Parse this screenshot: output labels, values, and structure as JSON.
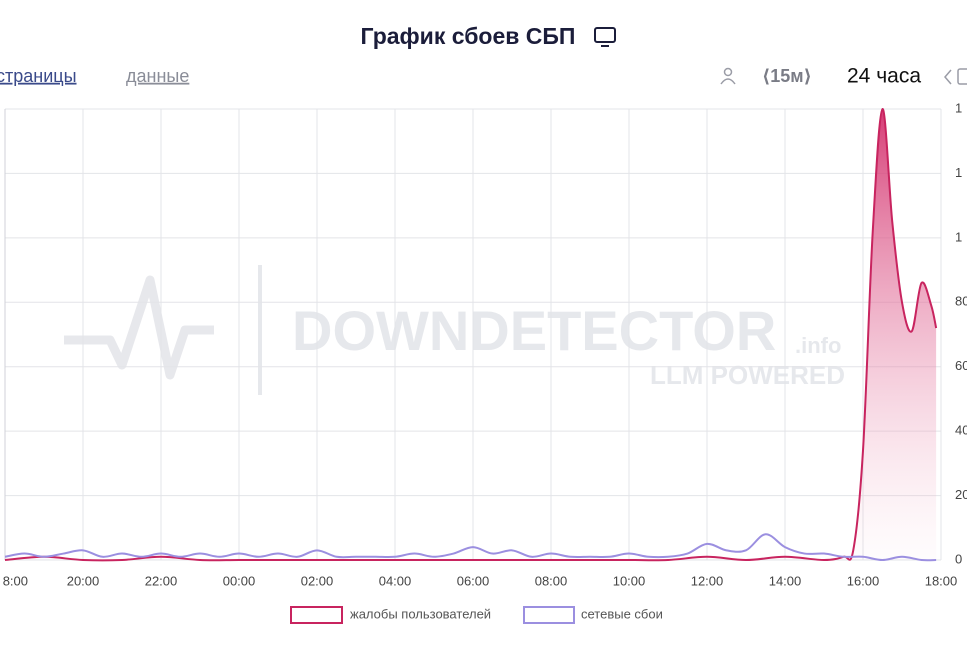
{
  "title": "График сбоев СБП",
  "toolbar": {
    "tabs": [
      "страницы",
      "данные"
    ],
    "interval": "⟨15м⟩",
    "range": "24 часа"
  },
  "watermark": {
    "brand": "DOWNDETECTOR",
    "suffix": ".info",
    "tagline": "LLM POWERED"
  },
  "chart_data": {
    "type": "line",
    "xlim": [
      0,
      24
    ],
    "xticks": [
      {
        "value": 0,
        "label": "8:00"
      },
      {
        "value": 2,
        "label": "20:00"
      },
      {
        "value": 4,
        "label": "22:00"
      },
      {
        "value": 6,
        "label": "00:00"
      },
      {
        "value": 8,
        "label": "02:00"
      },
      {
        "value": 10,
        "label": "04:00"
      },
      {
        "value": 12,
        "label": "06:00"
      },
      {
        "value": 14,
        "label": "08:00"
      },
      {
        "value": 16,
        "label": "10:00"
      },
      {
        "value": 18,
        "label": "12:00"
      },
      {
        "value": 20,
        "label": "14:00"
      },
      {
        "value": 22,
        "label": "16:00"
      },
      {
        "value": 24,
        "label": "18:00"
      }
    ],
    "ylim": [
      0,
      140
    ],
    "yticks": [
      0,
      20,
      40,
      60,
      80,
      {
        "value": 100,
        "label": "1"
      },
      {
        "value": 120,
        "label": "1"
      },
      {
        "value": 140,
        "label": "1"
      }
    ],
    "grid": true,
    "series": [
      {
        "name": "жалобы пользователей",
        "color": "#c8245f",
        "area": true,
        "x": [
          0,
          1,
          2,
          3,
          4,
          5,
          6,
          7,
          8,
          9,
          10,
          11,
          12,
          13,
          14,
          15,
          16,
          17,
          18,
          19,
          20,
          21,
          21.5,
          21.75,
          22,
          22.25,
          22.5,
          22.75,
          23,
          23.25,
          23.5,
          23.75,
          23.875
        ],
        "values": [
          0,
          1,
          0,
          0,
          1,
          0,
          0,
          0,
          0,
          0,
          0,
          0,
          0,
          0,
          0,
          0,
          0,
          0,
          1,
          0,
          1,
          0,
          1,
          3,
          34,
          102,
          140,
          105,
          80,
          71,
          86,
          79,
          72
        ]
      },
      {
        "name": "сетевые сбои",
        "color": "#9b8fe0",
        "area": false,
        "x": [
          0,
          0.5,
          1,
          1.5,
          2,
          2.5,
          3,
          3.5,
          4,
          4.5,
          5,
          5.5,
          6,
          6.5,
          7,
          7.5,
          8,
          8.5,
          9,
          9.5,
          10,
          10.5,
          11,
          11.5,
          12,
          12.5,
          13,
          13.5,
          14,
          14.5,
          15,
          15.5,
          16,
          16.5,
          17,
          17.5,
          18,
          18.5,
          19,
          19.5,
          20,
          20.5,
          21,
          21.5,
          22,
          22.5,
          23,
          23.5,
          23.875
        ],
        "values": [
          1,
          2,
          1,
          2,
          3,
          1,
          2,
          1,
          2,
          1,
          2,
          1,
          2,
          1,
          2,
          1,
          3,
          1,
          1,
          1,
          1,
          2,
          1,
          2,
          4,
          2,
          3,
          1,
          2,
          1,
          1,
          1,
          2,
          1,
          1,
          2,
          5,
          3,
          3,
          8,
          4,
          2,
          2,
          1,
          1,
          0,
          1,
          0,
          0
        ]
      }
    ]
  }
}
